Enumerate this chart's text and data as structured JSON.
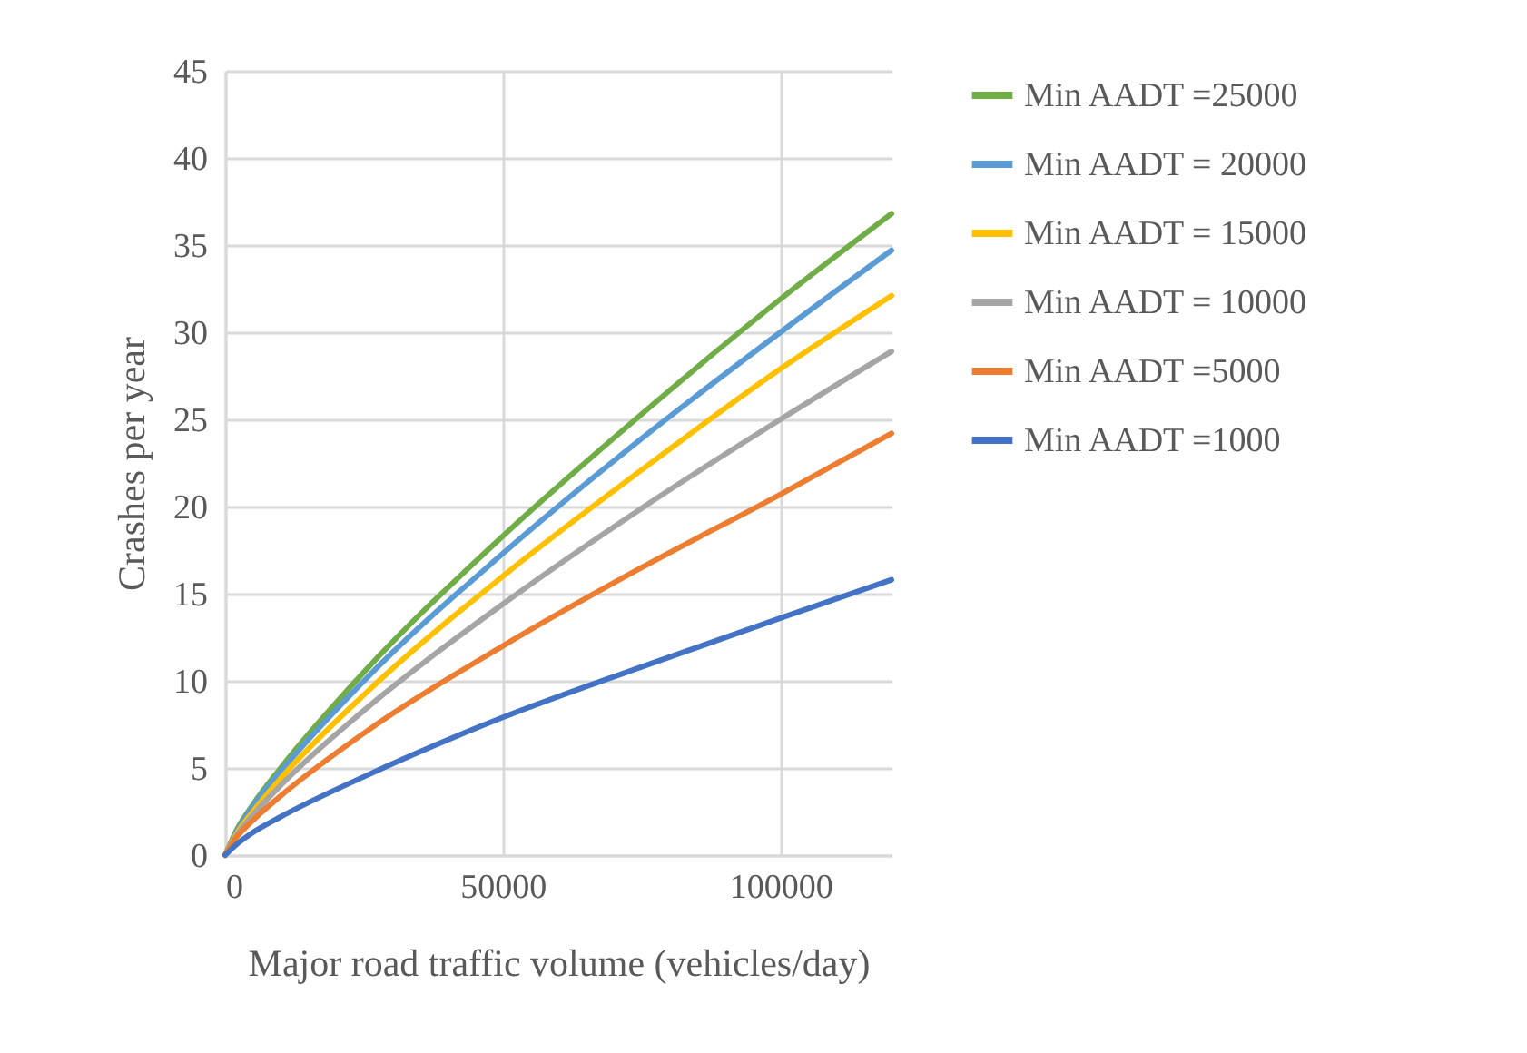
{
  "chart_data": {
    "type": "line",
    "xlabel": "Major road traffic volume (vehicles/day)",
    "ylabel": "Crashes per year",
    "x": [
      0,
      2000,
      5000,
      10000,
      25000,
      50000,
      75000,
      100000,
      120000
    ],
    "xlim": [
      0,
      120000
    ],
    "xticks": [
      0,
      50000,
      100000
    ],
    "ylim": [
      0,
      45
    ],
    "yticks": [
      0,
      5,
      10,
      15,
      20,
      25,
      30,
      35,
      40,
      45
    ],
    "grid": true,
    "legend": "right",
    "marker": "none",
    "line_style": "solid",
    "series": [
      {
        "name": "Min AADT =25000",
        "color": "#70ad47",
        "values": [
          0,
          1.4,
          2.9,
          5.0,
          10.5,
          18.3,
          25.3,
          31.9,
          36.8
        ]
      },
      {
        "name": "Min AADT = 20000",
        "color": "#5b9bd5",
        "values": [
          0,
          1.3,
          2.8,
          4.8,
          10.0,
          17.3,
          23.9,
          30.0,
          34.7
        ]
      },
      {
        "name": "Min AADT = 15000",
        "color": "#ffc000",
        "values": [
          0,
          1.2,
          2.5,
          4.4,
          9.2,
          16.0,
          22.1,
          27.9,
          32.1
        ]
      },
      {
        "name": "Min AADT = 10000",
        "color": "#a5a5a5",
        "values": [
          0,
          1.1,
          2.3,
          4.0,
          8.3,
          14.4,
          19.9,
          25.0,
          28.9
        ]
      },
      {
        "name": "Min AADT =5000",
        "color": "#ed7d31",
        "values": [
          0,
          1.0,
          2.0,
          3.4,
          7.0,
          12.0,
          16.5,
          20.7,
          24.2
        ]
      },
      {
        "name": "Min AADT =1000",
        "color": "#4472c4",
        "values": [
          0,
          0.6,
          1.3,
          2.2,
          4.5,
          7.9,
          10.8,
          13.6,
          15.8
        ]
      }
    ]
  }
}
